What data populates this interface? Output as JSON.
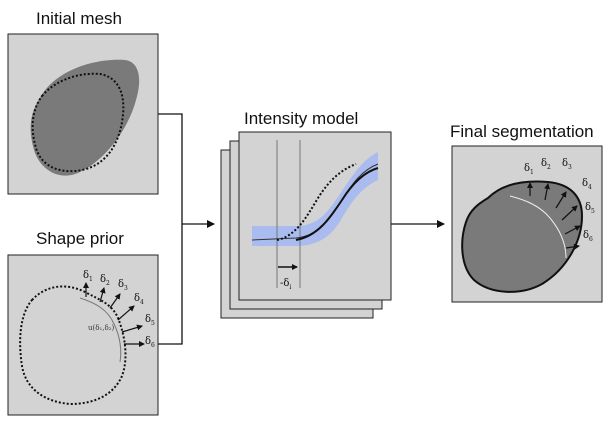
{
  "titles": {
    "initial_mesh": "Initial mesh",
    "shape_prior": "Shape prior",
    "intensity_model": "Intensity model",
    "final_segmentation": "Final segmentation"
  },
  "delta_symbol": "δ",
  "shape_prior_deltas": [
    "1",
    "2",
    "3",
    "4",
    "5",
    "6"
  ],
  "final_deltas": [
    "1",
    "2",
    "3",
    "4",
    "5",
    "6"
  ],
  "annotation_u": "u(δ",
  "annotation_u_full": "u(δ₁,δ₂)",
  "shift_label": "-δ",
  "shift_sub": "i",
  "colors": {
    "panel_fill": "#d3d3d3",
    "shape_fill": "#7a7a7a",
    "shape_fill_light": "#9a9a9a",
    "band_fill": "#aabbf0",
    "stroke": "#111111"
  }
}
